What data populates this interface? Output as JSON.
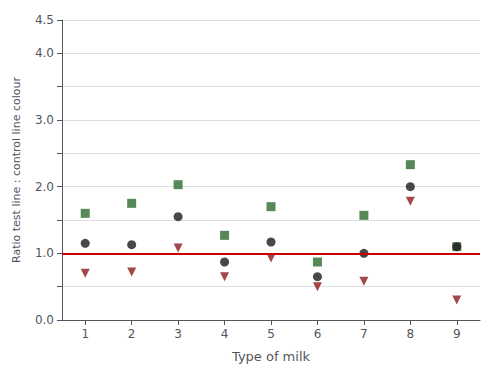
{
  "chart_data": {
    "type": "scatter",
    "xlabel": "Type of milk",
    "ylabel": "Ratio test line : control line colour",
    "x": [
      1,
      2,
      3,
      4,
      5,
      6,
      7,
      8,
      9
    ],
    "series": [
      {
        "values": [
          1.6,
          1.75,
          2.03,
          1.27,
          1.7,
          0.87,
          1.57,
          2.33,
          1.1
        ],
        "color": "#2d6a2d",
        "marker": "square"
      },
      {
        "values": [
          1.15,
          1.13,
          1.55,
          0.87,
          1.17,
          0.65,
          1.0,
          2.0,
          1.1
        ],
        "color": "#1a1a1a",
        "marker": "circle"
      },
      {
        "values": [
          0.7,
          0.72,
          1.08,
          0.65,
          0.93,
          0.5,
          0.58,
          1.78,
          0.3
        ],
        "color": "#8b1a1a",
        "marker": "triangle-down"
      }
    ],
    "hline": {
      "value": 1.0,
      "color": "#cc0000"
    },
    "xlim": [
      0.5,
      9.5
    ],
    "xticks": [
      1,
      2,
      3,
      4,
      5,
      6,
      7,
      8,
      9
    ],
    "ylim": [
      0.0,
      4.5
    ],
    "yticks": [
      {
        "value": 0.0,
        "label": "0.0"
      },
      {
        "value": 0.5,
        "label": null
      },
      {
        "value": 1.0,
        "label": "1.0"
      },
      {
        "value": 1.5,
        "label": null
      },
      {
        "value": 2.0,
        "label": "2.0"
      },
      {
        "value": 2.5,
        "label": null
      },
      {
        "value": 3.0,
        "label": "3.0"
      },
      {
        "value": 3.5,
        "label": null
      },
      {
        "value": 4.0,
        "label": "4.0"
      },
      4.5
    ],
    "grid": true
  }
}
